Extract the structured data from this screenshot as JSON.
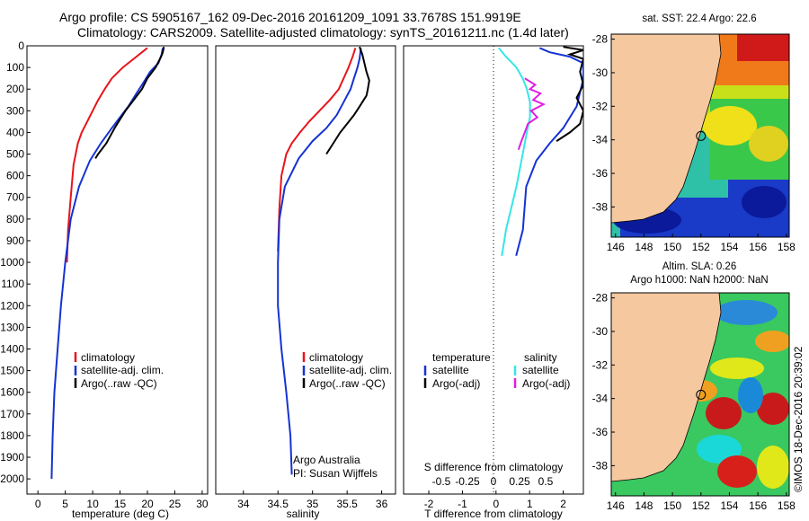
{
  "header": {
    "line1": "Argo profile: CS 5905167_162 09-Dec-2016 20161209_1091 33.7678S 151.9919E",
    "line2": "Climatology: CARS2009. Satellite-adjusted climatology: synTS_20161211.nc (1.4d later)"
  },
  "colors": {
    "climatology": "#e8141b",
    "satellite": "#1533d2",
    "argo": "#000000",
    "sat_salinity": "#34e6e6",
    "argo_salinity": "#e01fe0"
  },
  "depth_ticks": [
    "0",
    "100",
    "200",
    "300",
    "400",
    "500",
    "600",
    "700",
    "800",
    "900",
    "1000",
    "1100",
    "1200",
    "1300",
    "1400",
    "1500",
    "1600",
    "1700",
    "1800",
    "1900",
    "2000"
  ],
  "chart_data": [
    {
      "type": "line",
      "panel": "temperature",
      "xlabel": "temperature (deg C)",
      "xlim": [
        -2,
        31
      ],
      "ylim": [
        0,
        2070
      ],
      "x_ticks": [
        "0",
        "5",
        "10",
        "15",
        "20",
        "25",
        "30"
      ],
      "legend": [
        "climatology",
        "satellite-adj. clim.",
        "Argo(..raw -QC)"
      ],
      "series": [
        {
          "name": "climatology",
          "x": [
            20.0,
            19.0,
            17.5,
            15.5,
            13.5,
            12.2,
            11.0,
            10.0,
            9.0,
            8.0,
            7.3,
            6.5,
            6.0,
            5.5,
            5.3
          ],
          "y": [
            10,
            30,
            60,
            100,
            150,
            200,
            250,
            300,
            350,
            400,
            450,
            550,
            700,
            850,
            1000
          ]
        },
        {
          "name": "satellite-adj. clim.",
          "x": [
            22.8,
            22.6,
            22.0,
            20.5,
            19.5,
            18.0,
            16.5,
            15.0,
            13.5,
            11.5,
            9.5,
            7.5,
            6.0,
            5.0,
            4.2,
            3.6,
            3.0,
            2.7,
            2.5
          ],
          "y": [
            10,
            40,
            80,
            120,
            160,
            220,
            280,
            330,
            380,
            450,
            530,
            650,
            800,
            1000,
            1200,
            1400,
            1600,
            1800,
            2000
          ]
        },
        {
          "name": "Argo(..raw -QC)",
          "x": [
            23.0,
            22.8,
            22.5,
            21.5,
            20.0,
            19.0,
            17.5,
            16.0,
            15.0,
            14.0,
            12.5,
            11.0,
            10.5
          ],
          "y": [
            5,
            30,
            50,
            100,
            150,
            200,
            250,
            300,
            340,
            380,
            450,
            500,
            520
          ]
        }
      ],
      "annotations": []
    },
    {
      "type": "line",
      "panel": "salinity",
      "xlabel": "salinity",
      "xlim": [
        33.6,
        36.2
      ],
      "ylim": [
        0,
        2070
      ],
      "x_ticks": [
        "34",
        "34.5",
        "35",
        "35.5",
        "36"
      ],
      "legend": [
        "climatology",
        "satellite-adj. clim.",
        "Argo(..raw -QC)"
      ],
      "annotations": [
        "Argo Australia",
        "PI: Susan Wijffels"
      ],
      "series": [
        {
          "name": "climatology",
          "x": [
            35.62,
            35.58,
            35.52,
            35.45,
            35.38,
            35.25,
            35.1,
            34.95,
            34.82,
            34.7,
            34.62,
            34.55,
            34.52,
            34.5
          ],
          "y": [
            10,
            50,
            100,
            150,
            200,
            250,
            300,
            350,
            400,
            450,
            500,
            600,
            750,
            950
          ]
        },
        {
          "name": "satellite-adj. clim.",
          "x": [
            35.7,
            35.68,
            35.65,
            35.6,
            35.55,
            35.45,
            35.35,
            35.2,
            35.0,
            34.8,
            34.6,
            34.52,
            34.5,
            34.5,
            34.55,
            34.62,
            34.68,
            34.7
          ],
          "y": [
            10,
            60,
            100,
            150,
            200,
            260,
            320,
            380,
            440,
            520,
            650,
            800,
            1000,
            1200,
            1400,
            1600,
            1800,
            1980
          ]
        },
        {
          "name": "Argo(..raw -QC)",
          "x": [
            35.68,
            35.72,
            35.75,
            35.78,
            35.82,
            35.8,
            35.78,
            35.72,
            35.66,
            35.6,
            35.5,
            35.4,
            35.3,
            35.2
          ],
          "y": [
            5,
            40,
            80,
            120,
            160,
            200,
            230,
            260,
            290,
            320,
            360,
            400,
            450,
            500
          ]
        }
      ]
    },
    {
      "type": "line",
      "panel": "difference",
      "xlabel": "T difference from climatology",
      "xlabel_top": "S difference from climatology",
      "xlim": [
        -2.75,
        2.6
      ],
      "ylim": [
        0,
        2070
      ],
      "x_ticks": [
        "-2",
        "-1",
        "0",
        "1",
        "2"
      ],
      "s_ticks": [
        "-0.5",
        "-0.25",
        "0",
        "0.25",
        "0.5"
      ],
      "legend_titles": [
        "temperature",
        "salinity"
      ],
      "legend": [
        "satellite",
        "Argo(-adj)",
        "satellite",
        "Argo(-adj)"
      ],
      "series": [
        {
          "name": "temperature satellite",
          "x": [
            1.3,
            1.6,
            2.2,
            2.6,
            2.6,
            2.4,
            2.0,
            1.6,
            1.2,
            0.9,
            0.8,
            0.6
          ],
          "y": [
            10,
            30,
            50,
            80,
            150,
            280,
            380,
            450,
            530,
            650,
            850,
            970
          ]
        },
        {
          "name": "temperature Argo(-adj)",
          "x": [
            2.0,
            2.6,
            2.2,
            2.6,
            2.5,
            2.6,
            2.4,
            2.6,
            2.5,
            2.2,
            1.8
          ],
          "y": [
            5,
            20,
            40,
            60,
            120,
            180,
            240,
            300,
            360,
            400,
            440
          ]
        },
        {
          "name": "salinity satellite",
          "x": [
            0.05,
            0.12,
            0.22,
            0.28,
            0.32,
            0.35,
            0.35,
            0.32,
            0.28,
            0.22,
            0.12,
            0.08
          ],
          "y": [
            10,
            50,
            100,
            150,
            200,
            260,
            330,
            400,
            500,
            650,
            850,
            970
          ]
        },
        {
          "name": "salinity Argo(-adj)",
          "x": [
            0.3,
            0.4,
            0.35,
            0.45,
            0.38,
            0.48,
            0.36,
            0.42,
            0.33,
            0.3,
            0.26,
            0.24
          ],
          "y": [
            150,
            180,
            200,
            220,
            250,
            270,
            300,
            330,
            360,
            400,
            450,
            480
          ]
        }
      ],
      "annotations": []
    }
  ],
  "maps": {
    "sst_title": "sat. SST: 22.4 Argo: 22.6",
    "sla_title1": "Altim. SLA: 0.26",
    "sla_title2": "Argo h1000: NaN h2000: NaN",
    "lon_ticks": [
      "146",
      "148",
      "150",
      "152",
      "154",
      "156",
      "158"
    ],
    "lat_ticks": [
      "-28",
      "-30",
      "-32",
      "-34",
      "-36",
      "-38"
    ],
    "float_lon": 152.0,
    "float_lat": -33.77
  },
  "stamp": "©IMOS 18-Dec-2016 20:39:02"
}
